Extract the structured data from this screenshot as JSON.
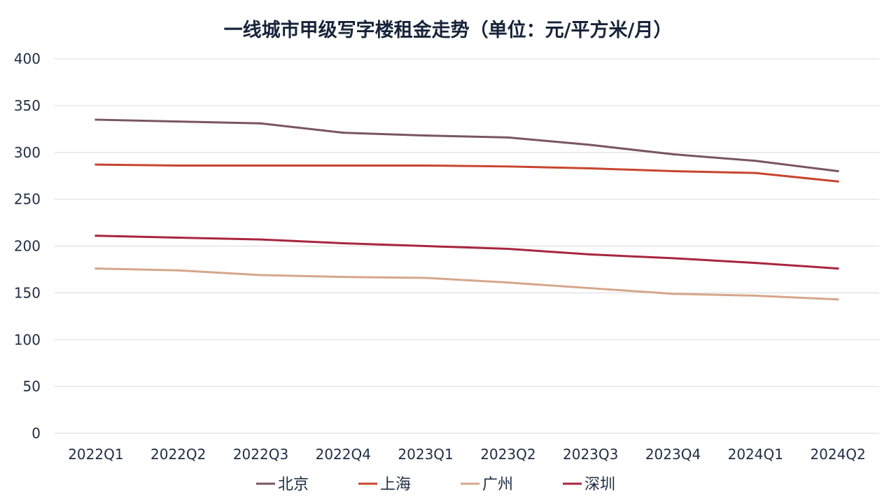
{
  "chart_data": {
    "type": "line",
    "title": "一线城市甲级写字楼租金走势（单位：元/平方米/月）",
    "xlabel": "",
    "ylabel": "",
    "categories": [
      "2022Q1",
      "2022Q2",
      "2022Q3",
      "2022Q4",
      "2023Q1",
      "2023Q2",
      "2023Q3",
      "2023Q4",
      "2024Q1",
      "2024Q2"
    ],
    "ylim": [
      0,
      400
    ],
    "yticks": [
      0,
      50,
      100,
      150,
      200,
      250,
      300,
      350,
      400
    ],
    "grid": true,
    "legend_position": "bottom",
    "series": [
      {
        "name": "北京",
        "color": "#7a5560",
        "values": [
          335,
          333,
          331,
          321,
          318,
          316,
          308,
          298,
          291,
          280
        ]
      },
      {
        "name": "上海",
        "color": "#c8452e",
        "values": [
          287,
          286,
          286,
          286,
          286,
          285,
          283,
          280,
          278,
          269
        ]
      },
      {
        "name": "广州",
        "color": "#d6a68c",
        "values": [
          176,
          174,
          169,
          167,
          166,
          161,
          155,
          149,
          147,
          143
        ]
      },
      {
        "name": "深圳",
        "color": "#a8253f",
        "values": [
          211,
          209,
          207,
          203,
          200,
          197,
          191,
          187,
          182,
          176
        ]
      }
    ]
  }
}
